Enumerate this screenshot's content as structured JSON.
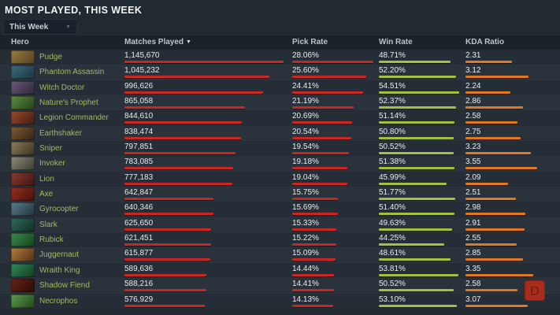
{
  "header": {
    "title": "MOST PLAYED, THIS WEEK"
  },
  "filter": {
    "selected": "This Week",
    "caret_icon": "▼"
  },
  "colors": {
    "matches_bar": "#c92723",
    "pick_bar": "#c92723",
    "win_bar": "#a3c13a",
    "kda_bar": "#e2791f",
    "hero_link": "#a9b95a",
    "row_odd": "#252d36",
    "row_even": "#2a323c"
  },
  "table": {
    "columns": [
      "Hero",
      "Matches Played",
      "Pick Rate",
      "Win Rate",
      "KDA Ratio"
    ],
    "sort": {
      "column": "Matches Played",
      "direction": "desc",
      "icon": "▼"
    },
    "rows": [
      {
        "hero": "Pudge",
        "matches": "1,145,670",
        "pick_rate": "28.06%",
        "win_rate": "48.71%",
        "kda": "2.31",
        "icon_colors": [
          "#9a7b42",
          "#52401f"
        ]
      },
      {
        "hero": "Phantom Assassin",
        "matches": "1,045,232",
        "pick_rate": "25.60%",
        "win_rate": "52.20%",
        "kda": "3.12",
        "icon_colors": [
          "#3d6b7d",
          "#1e3440"
        ]
      },
      {
        "hero": "Witch Doctor",
        "matches": "996,626",
        "pick_rate": "24.41%",
        "win_rate": "54.51%",
        "kda": "2.24",
        "icon_colors": [
          "#6b5a7d",
          "#2e2438"
        ]
      },
      {
        "hero": "Nature's Prophet",
        "matches": "865,058",
        "pick_rate": "21.19%",
        "win_rate": "52.37%",
        "kda": "2.86",
        "icon_colors": [
          "#5d8c3f",
          "#27401a"
        ]
      },
      {
        "hero": "Legion Commander",
        "matches": "844,610",
        "pick_rate": "20.69%",
        "win_rate": "51.14%",
        "kda": "2.58",
        "icon_colors": [
          "#9c4a2e",
          "#3f1d12"
        ]
      },
      {
        "hero": "Earthshaker",
        "matches": "838,474",
        "pick_rate": "20.54%",
        "win_rate": "50.80%",
        "kda": "2.75",
        "icon_colors": [
          "#7d5a36",
          "#332412"
        ]
      },
      {
        "hero": "Sniper",
        "matches": "797,851",
        "pick_rate": "19.54%",
        "win_rate": "50.52%",
        "kda": "3.23",
        "icon_colors": [
          "#8c7d5a",
          "#3a3322"
        ]
      },
      {
        "hero": "Invoker",
        "matches": "783,085",
        "pick_rate": "19.18%",
        "win_rate": "51.38%",
        "kda": "3.55",
        "icon_colors": [
          "#8c8c7d",
          "#3a3a30"
        ]
      },
      {
        "hero": "Lion",
        "matches": "777,183",
        "pick_rate": "19.04%",
        "win_rate": "45.99%",
        "kda": "2.09",
        "icon_colors": [
          "#8c3a2e",
          "#3a1612"
        ]
      },
      {
        "hero": "Axe",
        "matches": "642,847",
        "pick_rate": "15.75%",
        "win_rate": "51.77%",
        "kda": "2.51",
        "icon_colors": [
          "#9c2e1e",
          "#40120a"
        ]
      },
      {
        "hero": "Gyrocopter",
        "matches": "640,346",
        "pick_rate": "15.69%",
        "win_rate": "51.40%",
        "kda": "2.98",
        "icon_colors": [
          "#5a7d8c",
          "#22333a"
        ]
      },
      {
        "hero": "Slark",
        "matches": "625,650",
        "pick_rate": "15.33%",
        "win_rate": "49.63%",
        "kda": "2.91",
        "icon_colors": [
          "#2e6b5d",
          "#122e26"
        ]
      },
      {
        "hero": "Rubick",
        "matches": "621,451",
        "pick_rate": "15.22%",
        "win_rate": "44.25%",
        "kda": "2.55",
        "icon_colors": [
          "#3a8c4a",
          "#16401e"
        ]
      },
      {
        "hero": "Juggernaut",
        "matches": "615,877",
        "pick_rate": "15.09%",
        "win_rate": "48.61%",
        "kda": "2.85",
        "icon_colors": [
          "#b87d3a",
          "#4a3016"
        ]
      },
      {
        "hero": "Wraith King",
        "matches": "589,636",
        "pick_rate": "14.44%",
        "win_rate": "53.81%",
        "kda": "3.35",
        "icon_colors": [
          "#2e8c5a",
          "#123a22"
        ]
      },
      {
        "hero": "Shadow Fiend",
        "matches": "588,216",
        "pick_rate": "14.41%",
        "win_rate": "50.52%",
        "kda": "2.58",
        "icon_colors": [
          "#6b2218",
          "#260c06"
        ]
      },
      {
        "hero": "Necrophos",
        "matches": "576,929",
        "pick_rate": "14.13%",
        "win_rate": "53.10%",
        "kda": "3.07",
        "icon_colors": [
          "#5aa04a",
          "#24421c"
        ]
      }
    ]
  },
  "logo": {
    "letter": "D"
  }
}
